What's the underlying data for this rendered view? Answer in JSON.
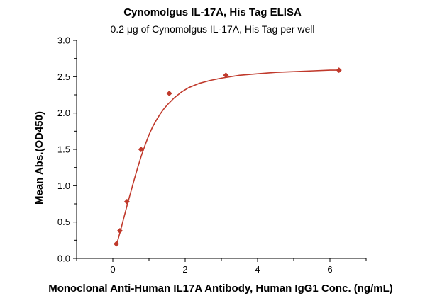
{
  "chart_data": {
    "type": "scatter",
    "title": "Cynomolgus IL-17A, His Tag ELISA",
    "subtitle": "0.2 μg of Cynomolgus IL-17A, His Tag per well",
    "xlabel": "Monoclonal Anti-Human IL17A Antibody, Human IgG1 Conc. (ng/mL)",
    "ylabel": "Mean Abs.(OD450)",
    "xlim": [
      -1,
      7
    ],
    "ylim": [
      0,
      3.0
    ],
    "xticks": [
      0,
      2,
      4,
      6
    ],
    "xtick_labels": [
      "0",
      "2",
      "4",
      "6"
    ],
    "yticks": [
      0,
      0.5,
      1.0,
      1.5,
      2.0,
      2.5,
      3.0
    ],
    "ytick_labels": [
      "0.0",
      "0.5",
      "1.0",
      "1.5",
      "2.0",
      "2.5",
      "3.0"
    ],
    "grid": false,
    "series": [
      {
        "points": [
          {
            "x": 0.098,
            "y": 0.2
          },
          {
            "x": 0.195,
            "y": 0.38
          },
          {
            "x": 0.39,
            "y": 0.78
          },
          {
            "x": 0.78,
            "y": 1.5
          },
          {
            "x": 1.56,
            "y": 2.27
          },
          {
            "x": 3.125,
            "y": 2.52
          },
          {
            "x": 6.25,
            "y": 2.59
          }
        ],
        "marker": "diamond",
        "color": "#c0392b"
      }
    ],
    "fit_curve": {
      "type": "saturation-fit",
      "color": "#c0392b",
      "points": [
        {
          "x": 0.1,
          "y": 0.18
        },
        {
          "x": 0.2,
          "y": 0.36
        },
        {
          "x": 0.3,
          "y": 0.55
        },
        {
          "x": 0.4,
          "y": 0.74
        },
        {
          "x": 0.5,
          "y": 0.92
        },
        {
          "x": 0.6,
          "y": 1.1
        },
        {
          "x": 0.7,
          "y": 1.27
        },
        {
          "x": 0.8,
          "y": 1.43
        },
        {
          "x": 0.9,
          "y": 1.57
        },
        {
          "x": 1.0,
          "y": 1.7
        },
        {
          "x": 1.1,
          "y": 1.81
        },
        {
          "x": 1.2,
          "y": 1.9
        },
        {
          "x": 1.3,
          "y": 1.98
        },
        {
          "x": 1.4,
          "y": 2.05
        },
        {
          "x": 1.5,
          "y": 2.11
        },
        {
          "x": 1.7,
          "y": 2.21
        },
        {
          "x": 1.9,
          "y": 2.29
        },
        {
          "x": 2.1,
          "y": 2.35
        },
        {
          "x": 2.4,
          "y": 2.41
        },
        {
          "x": 2.7,
          "y": 2.45
        },
        {
          "x": 3.0,
          "y": 2.48
        },
        {
          "x": 3.5,
          "y": 2.52
        },
        {
          "x": 4.0,
          "y": 2.54
        },
        {
          "x": 4.5,
          "y": 2.56
        },
        {
          "x": 5.0,
          "y": 2.57
        },
        {
          "x": 5.5,
          "y": 2.58
        },
        {
          "x": 6.0,
          "y": 2.59
        },
        {
          "x": 6.25,
          "y": 2.59
        }
      ]
    }
  }
}
